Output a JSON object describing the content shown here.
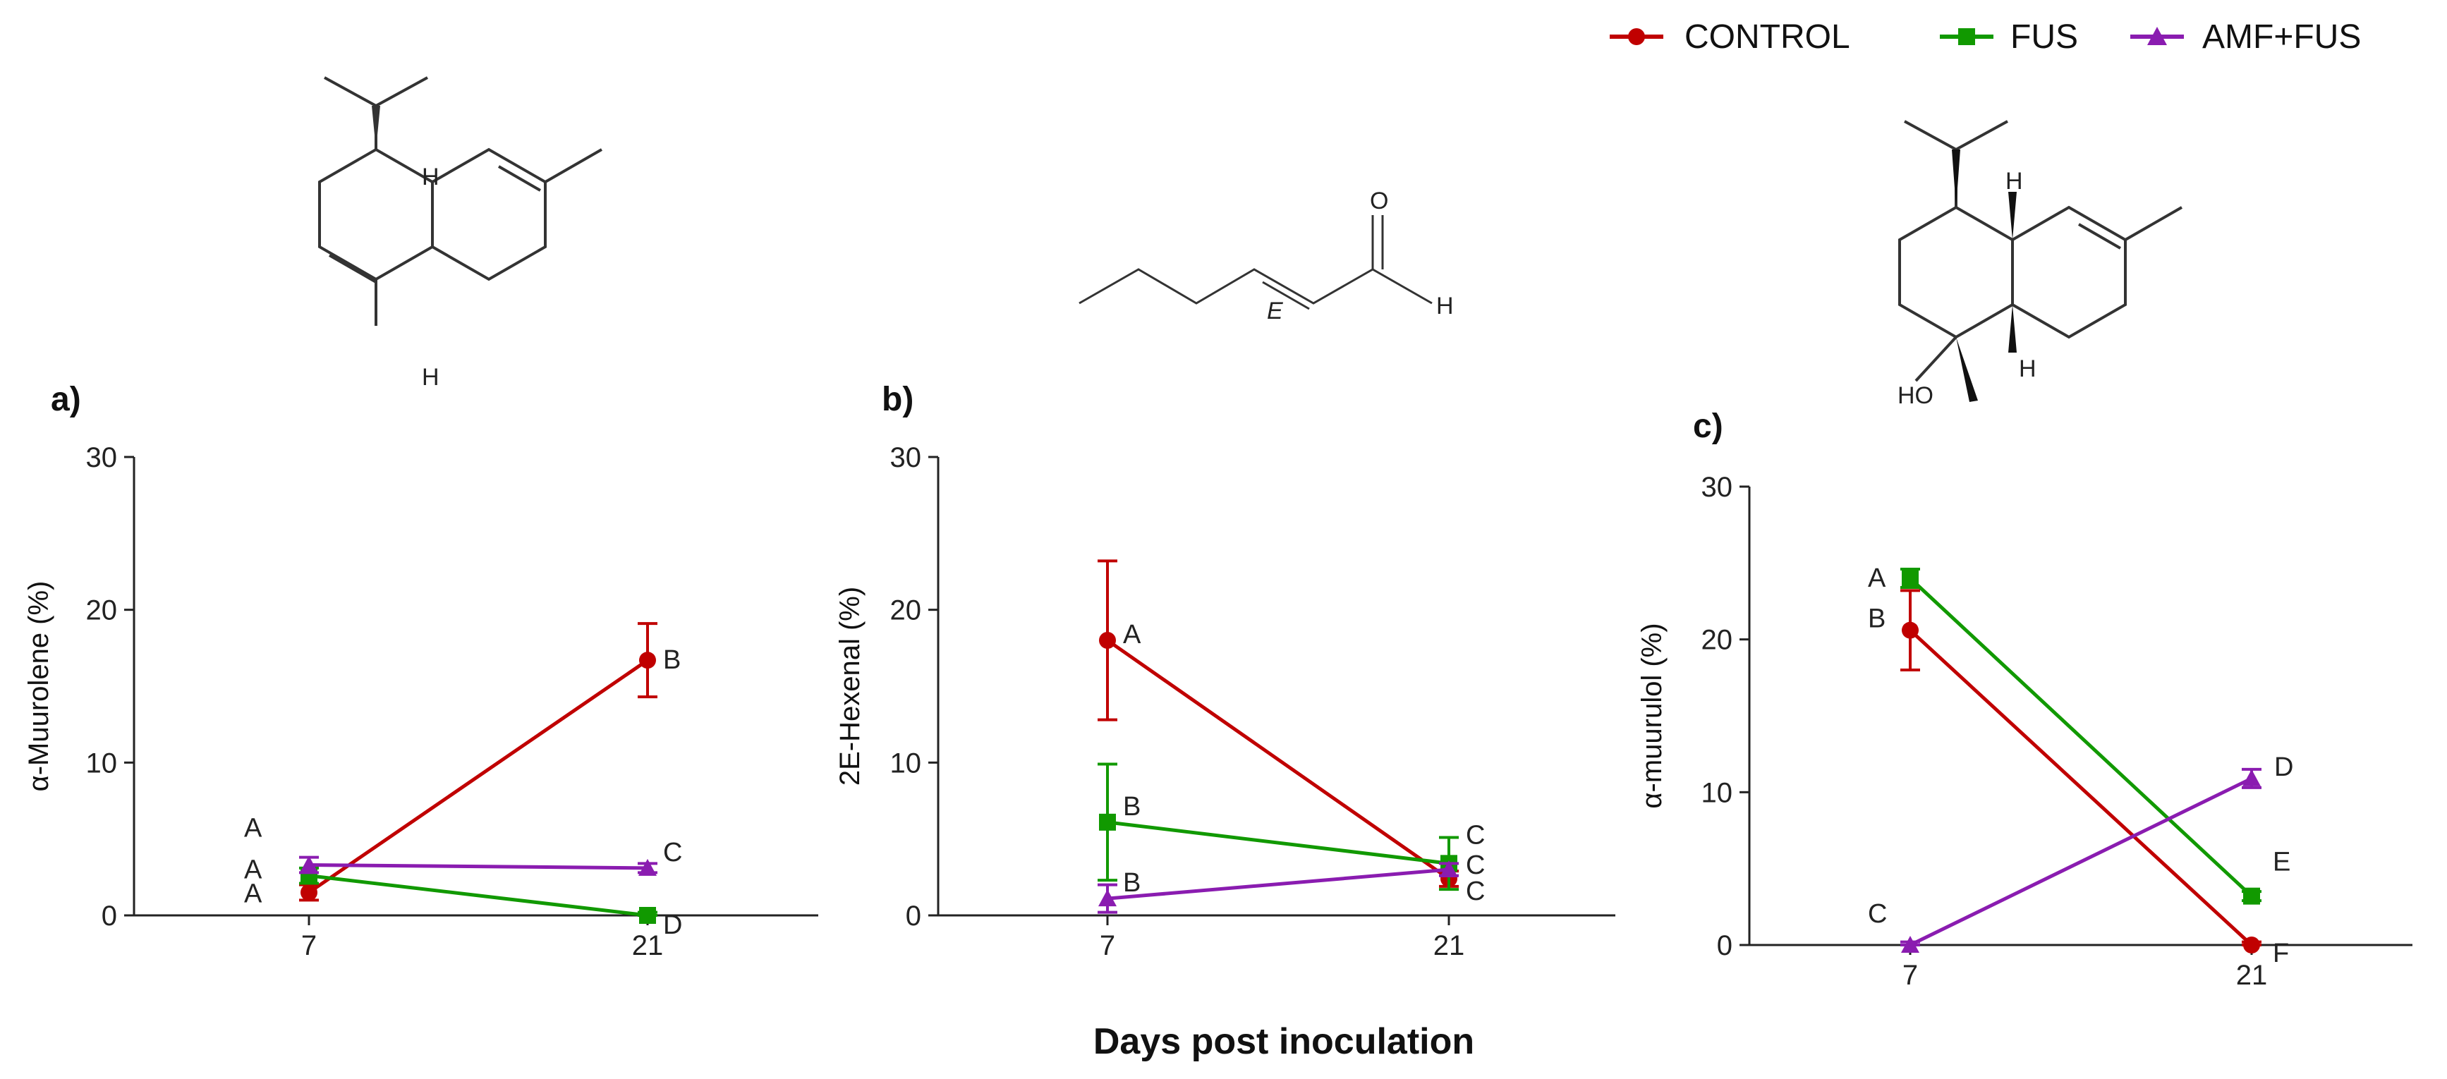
{
  "legend": [
    {
      "name": "CONTROL",
      "color": "#c00000",
      "marker": "circle"
    },
    {
      "name": "FUS",
      "color": "#119900",
      "marker": "square"
    },
    {
      "name": "AMF+FUS",
      "color": "#8a1cb0",
      "marker": "triangle"
    }
  ],
  "xlabel": "Days post inoculation",
  "chart_data": [
    {
      "type": "line",
      "panel": "a)",
      "ylabel": "α-Muurolene (%)",
      "ylim": [
        0,
        30
      ],
      "yticks": [
        "0",
        "10",
        "20",
        "30"
      ],
      "categories": [
        "7",
        "21"
      ],
      "series": [
        {
          "name": "CONTROL",
          "values": [
            1.5,
            16.7
          ],
          "errors": [
            0.5,
            2.4
          ],
          "letters": [
            "A",
            "B"
          ]
        },
        {
          "name": "FUS",
          "values": [
            2.6,
            0
          ],
          "errors": [
            0.5,
            0.2
          ],
          "letters": [
            "A",
            "D"
          ]
        },
        {
          "name": "AMF+FUS",
          "values": [
            3.3,
            3.1
          ],
          "errors": [
            0.5,
            0.3
          ],
          "letters": [
            "A",
            "C"
          ]
        }
      ]
    },
    {
      "type": "line",
      "panel": "b)",
      "ylabel": "2E-Hexenal (%)",
      "ylim": [
        0,
        30
      ],
      "yticks": [
        "0",
        "10",
        "20",
        "30"
      ],
      "categories": [
        "7",
        "21"
      ],
      "series": [
        {
          "name": "CONTROL",
          "values": [
            18,
            2.4
          ],
          "errors": [
            5.2,
            0.5
          ],
          "letters": [
            "A",
            "C"
          ]
        },
        {
          "name": "FUS",
          "values": [
            6.1,
            3.4
          ],
          "errors": [
            3.8,
            1.7
          ],
          "letters": [
            "B",
            "C"
          ]
        },
        {
          "name": "AMF+FUS",
          "values": [
            1.1,
            3.0
          ],
          "errors": [
            0.9,
            0.4
          ],
          "letters": [
            "B",
            "C"
          ]
        }
      ]
    },
    {
      "type": "line",
      "panel": "c)",
      "ylabel": "α-muurulol (%)",
      "ylim": [
        0,
        30
      ],
      "yticks": [
        "0",
        "10",
        "20",
        "30"
      ],
      "categories": [
        "7",
        "21"
      ],
      "series": [
        {
          "name": "CONTROL",
          "values": [
            20.6,
            0
          ],
          "errors": [
            2.6,
            0.2
          ],
          "letters": [
            "B",
            "F"
          ]
        },
        {
          "name": "FUS",
          "values": [
            24.0,
            3.2
          ],
          "errors": [
            0.6,
            0.3
          ],
          "letters": [
            "A",
            "E"
          ]
        },
        {
          "name": "AMF+FUS",
          "values": [
            0,
            10.9
          ],
          "errors": [
            0.2,
            0.6
          ],
          "letters": [
            "C",
            "D"
          ]
        }
      ]
    }
  ],
  "molecules": {
    "a": {
      "atoms": [
        "H",
        "H"
      ]
    },
    "b": {
      "atoms": [
        "O",
        "H",
        "E"
      ]
    },
    "c": {
      "atoms": [
        "H",
        "H",
        "HO"
      ]
    }
  }
}
